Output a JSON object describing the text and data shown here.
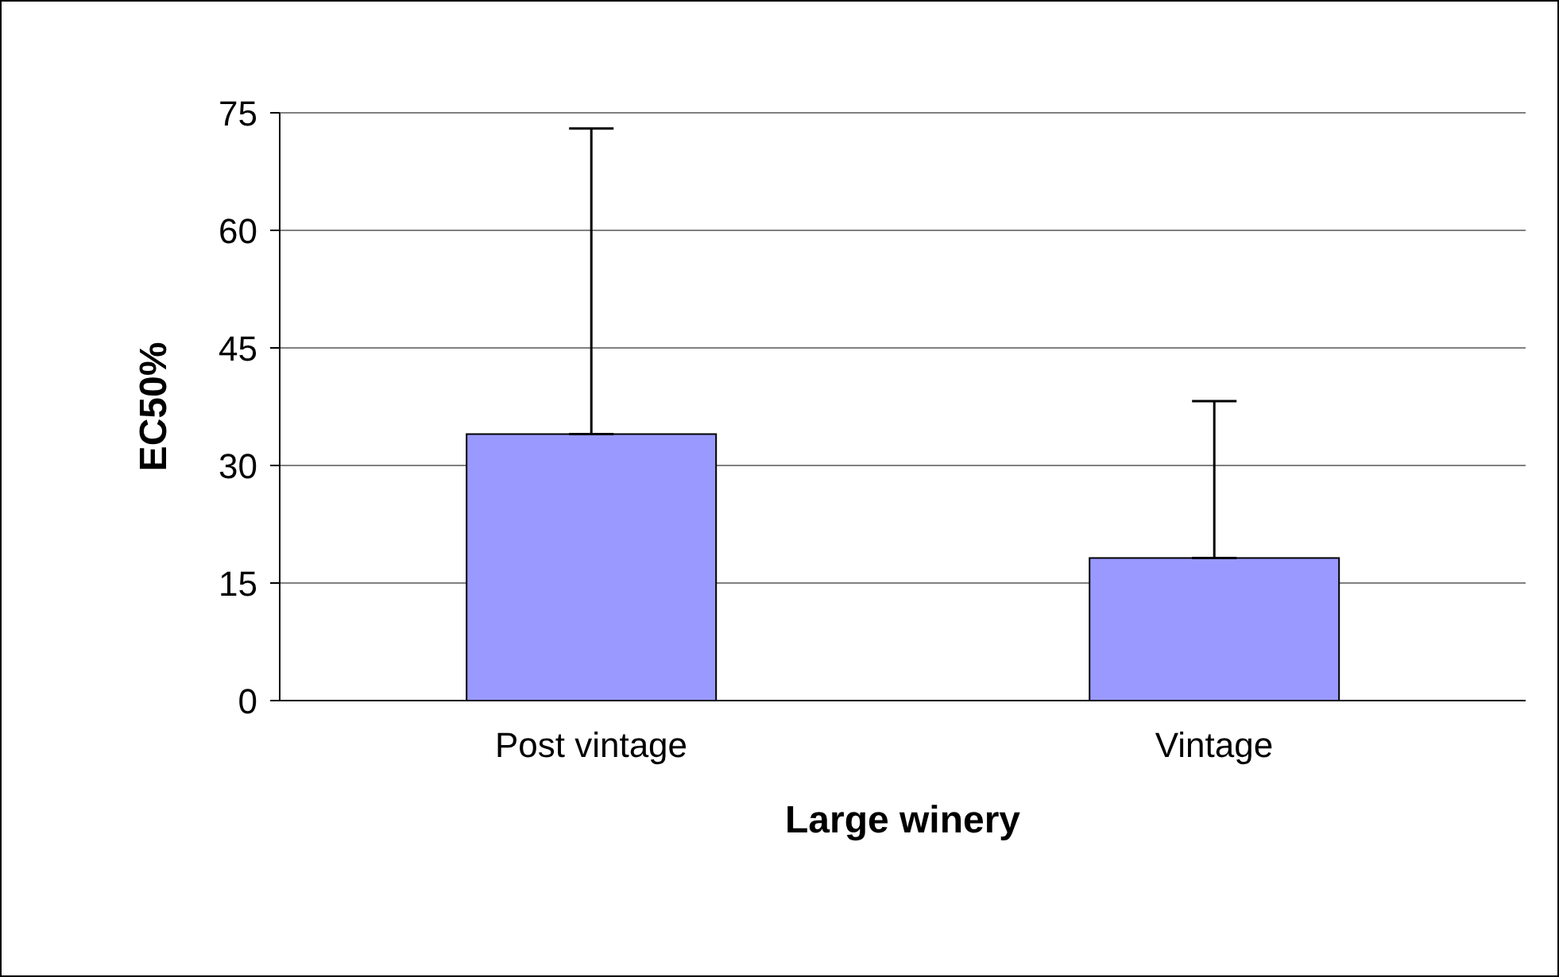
{
  "chart_data": {
    "type": "bar",
    "xlabel": "Large winery",
    "ylabel": "EC50%",
    "categories": [
      "Post vintage",
      "Vintage"
    ],
    "values": [
      34,
      18.2
    ],
    "color": "#9999ff",
    "errors": [
      [
        34,
        73
      ],
      [
        18.2,
        38.2
      ]
    ],
    "ylim": [
      0,
      75
    ],
    "yticks": [
      0,
      15,
      30,
      45,
      60,
      75
    ],
    "grid": "y",
    "legend": false
  }
}
